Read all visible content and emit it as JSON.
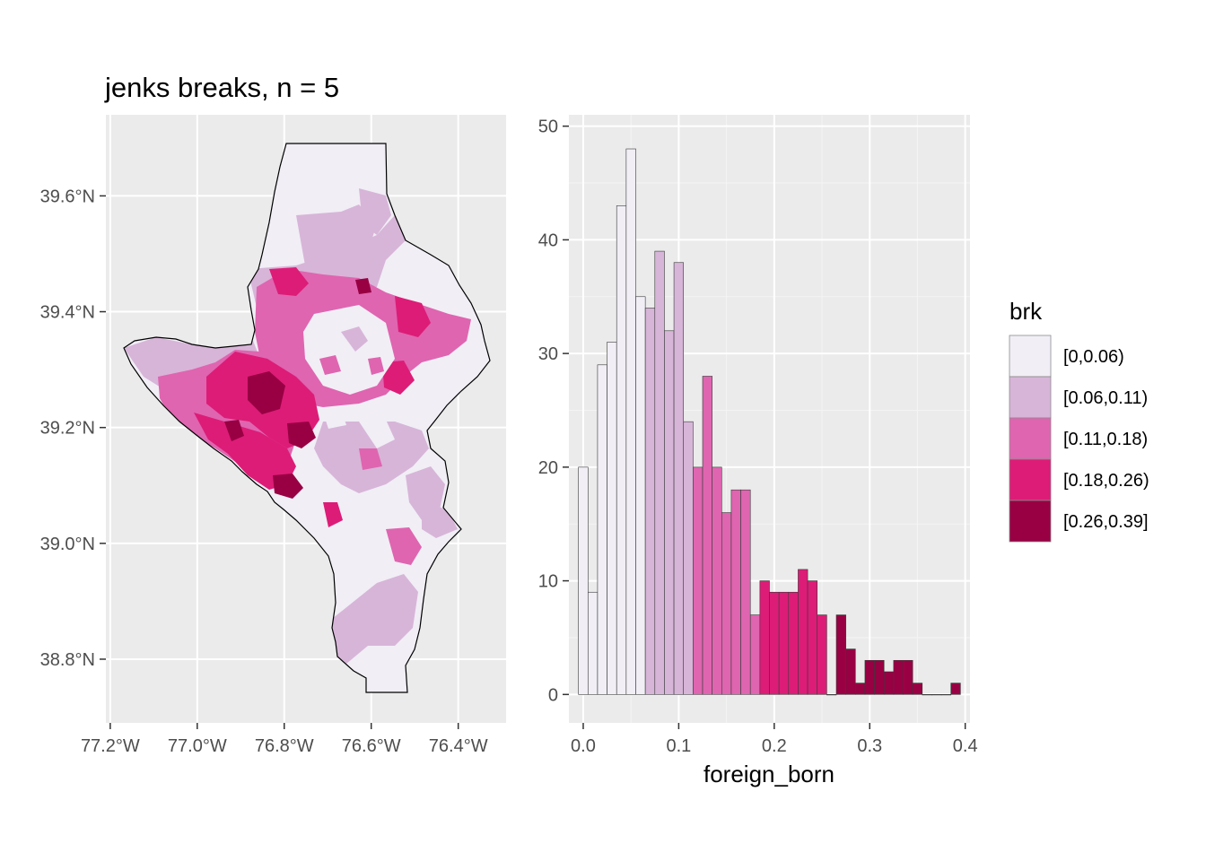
{
  "title": "jenks breaks, n = 5",
  "colors": {
    "panel": "#ebebeb",
    "grid_major": "#ffffff",
    "grid_minor": "#f4f4f4",
    "tick_text": "#4d4d4d",
    "bar_outline": "#3a3a3a"
  },
  "legend": {
    "title": "brk",
    "classes": [
      {
        "label": "[0,0.06)",
        "color": "#f1eef6"
      },
      {
        "label": "[0.06,0.11)",
        "color": "#d7b5d8"
      },
      {
        "label": "[0.11,0.18)",
        "color": "#df65b0"
      },
      {
        "label": "[0.18,0.26)",
        "color": "#dd1c77"
      },
      {
        "label": "[0.26,0.39]",
        "color": "#980043"
      }
    ]
  },
  "map": {
    "x_ticks": [
      "77.2°W",
      "77.0°W",
      "76.8°W",
      "76.6°W",
      "76.4°W"
    ],
    "y_ticks": [
      "38.8°N",
      "39.0°N",
      "39.2°N",
      "39.4°N",
      "39.6°N"
    ],
    "x_values": [
      -77.2,
      -77.0,
      -76.8,
      -76.6,
      -76.4
    ],
    "y_values": [
      38.8,
      39.0,
      39.2,
      39.4,
      39.6
    ],
    "xlim": [
      -77.21,
      -76.29
    ],
    "ylim": [
      38.69,
      39.74
    ]
  },
  "chart_data": {
    "type": "histogram",
    "title": "jenks breaks, n = 5",
    "xlabel": "foreign_born",
    "ylabel": "",
    "xlim": [
      -0.015,
      0.405
    ],
    "ylim": [
      -2.5,
      51
    ],
    "x_ticks": [
      0.0,
      0.1,
      0.2,
      0.3,
      0.4
    ],
    "x_tick_labels": [
      "0.0",
      "0.1",
      "0.2",
      "0.3",
      "0.4"
    ],
    "y_ticks": [
      0,
      10,
      20,
      30,
      40,
      50
    ],
    "y_tick_labels": [
      "0",
      "10",
      "20",
      "30",
      "40",
      "50"
    ],
    "bin_width": 0.01,
    "bins": [
      {
        "x0": -0.005,
        "count": 20,
        "class": 0
      },
      {
        "x0": 0.005,
        "count": 9,
        "class": 0
      },
      {
        "x0": 0.015,
        "count": 29,
        "class": 0
      },
      {
        "x0": 0.025,
        "count": 31,
        "class": 0
      },
      {
        "x0": 0.035,
        "count": 43,
        "class": 0
      },
      {
        "x0": 0.045,
        "count": 48,
        "class": 0
      },
      {
        "x0": 0.055,
        "count": 35,
        "class": 0
      },
      {
        "x0": 0.065,
        "count": 34,
        "class": 1
      },
      {
        "x0": 0.075,
        "count": 39,
        "class": 1
      },
      {
        "x0": 0.085,
        "count": 32,
        "class": 1
      },
      {
        "x0": 0.095,
        "count": 38,
        "class": 1
      },
      {
        "x0": 0.105,
        "count": 24,
        "class": 1
      },
      {
        "x0": 0.115,
        "count": 20,
        "class": 2
      },
      {
        "x0": 0.125,
        "count": 28,
        "class": 2
      },
      {
        "x0": 0.135,
        "count": 20,
        "class": 2
      },
      {
        "x0": 0.145,
        "count": 16,
        "class": 2
      },
      {
        "x0": 0.155,
        "count": 18,
        "class": 2
      },
      {
        "x0": 0.165,
        "count": 18,
        "class": 2
      },
      {
        "x0": 0.175,
        "count": 7,
        "class": 2
      },
      {
        "x0": 0.185,
        "count": 10,
        "class": 3
      },
      {
        "x0": 0.195,
        "count": 9,
        "class": 3
      },
      {
        "x0": 0.205,
        "count": 9,
        "class": 3
      },
      {
        "x0": 0.215,
        "count": 9,
        "class": 3
      },
      {
        "x0": 0.225,
        "count": 11,
        "class": 3
      },
      {
        "x0": 0.235,
        "count": 10,
        "class": 3
      },
      {
        "x0": 0.245,
        "count": 7,
        "class": 3
      },
      {
        "x0": 0.255,
        "count": 0,
        "class": 3
      },
      {
        "x0": 0.265,
        "count": 7,
        "class": 4
      },
      {
        "x0": 0.275,
        "count": 4,
        "class": 4
      },
      {
        "x0": 0.285,
        "count": 1,
        "class": 4
      },
      {
        "x0": 0.295,
        "count": 3,
        "class": 4
      },
      {
        "x0": 0.305,
        "count": 3,
        "class": 4
      },
      {
        "x0": 0.315,
        "count": 2,
        "class": 4
      },
      {
        "x0": 0.325,
        "count": 3,
        "class": 4
      },
      {
        "x0": 0.335,
        "count": 3,
        "class": 4
      },
      {
        "x0": 0.345,
        "count": 1,
        "class": 4
      },
      {
        "x0": 0.355,
        "count": 0,
        "class": 4
      },
      {
        "x0": 0.365,
        "count": 0,
        "class": 4
      },
      {
        "x0": 0.375,
        "count": 0,
        "class": 4
      },
      {
        "x0": 0.385,
        "count": 1,
        "class": 4
      }
    ]
  }
}
